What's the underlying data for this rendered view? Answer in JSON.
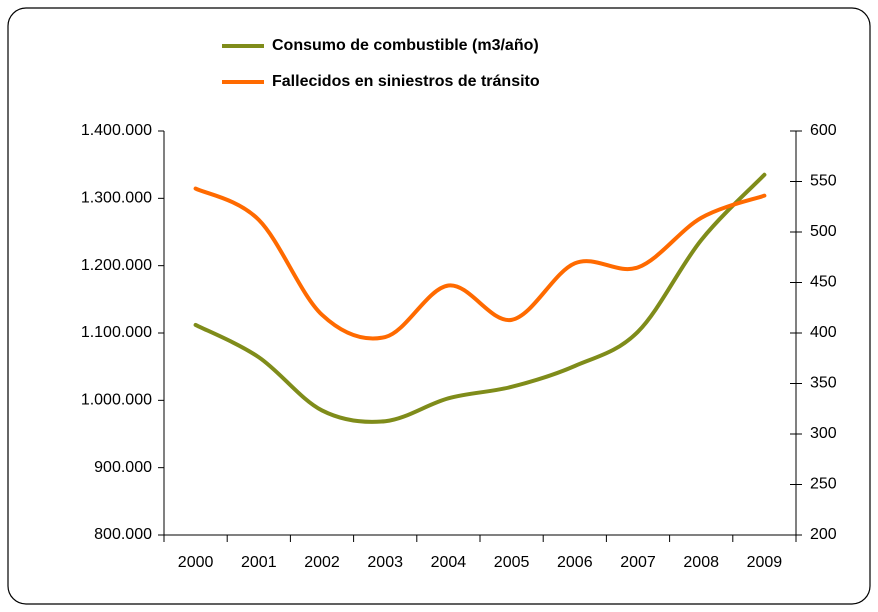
{
  "chart_data": {
    "type": "line",
    "categories": [
      "2000",
      "2001",
      "2002",
      "2003",
      "2004",
      "2005",
      "2006",
      "2007",
      "2008",
      "2009"
    ],
    "series": [
      {
        "name": "Consumo de combustible (m3/año)",
        "color": "#7f8c1a",
        "values": [
          1112000,
          1064000,
          985000,
          969000,
          1003000,
          1020000,
          1051000,
          1102000,
          1238000,
          1335000
        ]
      },
      {
        "name": "Fallecidos en siniestros de tránsito",
        "color": "#ff6a00",
        "axis": "y2",
        "values": [
          543,
          512,
          418,
          396,
          447,
          413,
          469,
          465,
          514,
          536
        ]
      }
    ],
    "ylim": [
      800000,
      1400000
    ],
    "yticks": [
      {
        "value": 800000,
        "label": "800.000"
      },
      {
        "value": 900000,
        "label": "900.000"
      },
      {
        "value": 1000000,
        "label": "1.000.000"
      },
      {
        "value": 1100000,
        "label": "1.100.000"
      },
      {
        "value": 1200000,
        "label": "1.200.000"
      },
      {
        "value": 1300000,
        "label": "1.300.000"
      },
      {
        "value": 1400000,
        "label": "1.400.000"
      }
    ],
    "y2lim": [
      200,
      600
    ],
    "y2ticks": [
      200,
      250,
      300,
      350,
      400,
      450,
      500,
      550,
      600
    ],
    "smooth": true,
    "legend": "top"
  }
}
